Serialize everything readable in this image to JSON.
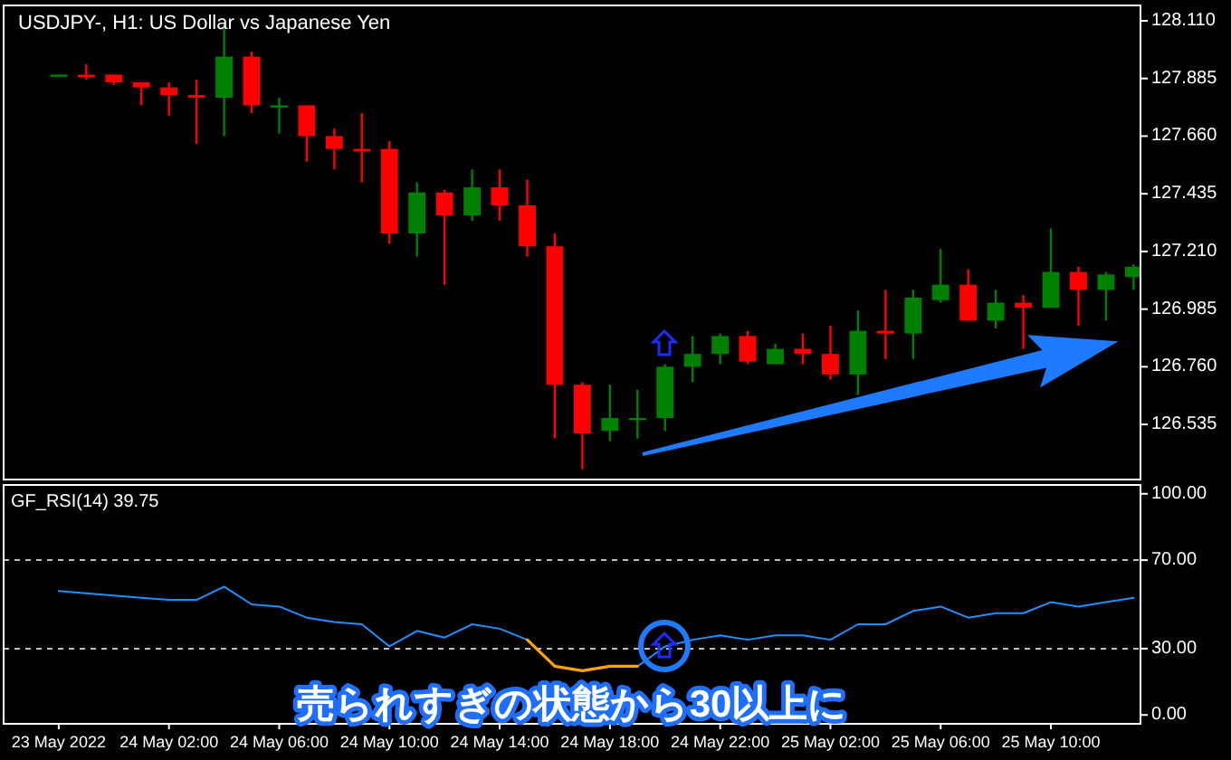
{
  "chart_data": [
    {
      "type": "candlestick",
      "title": "USDJPY-, H1:  US Dollar vs Japanese Yen",
      "x": [
        "2022-05-23T22:00",
        "2022-05-23T23:00",
        "2022-05-24T00:00",
        "2022-05-24T01:00",
        "2022-05-24T02:00",
        "2022-05-24T03:00",
        "2022-05-24T04:00",
        "2022-05-24T05:00",
        "2022-05-24T06:00",
        "2022-05-24T07:00",
        "2022-05-24T08:00",
        "2022-05-24T09:00",
        "2022-05-24T10:00",
        "2022-05-24T11:00",
        "2022-05-24T12:00",
        "2022-05-24T13:00",
        "2022-05-24T14:00",
        "2022-05-24T15:00",
        "2022-05-24T16:00",
        "2022-05-24T17:00",
        "2022-05-24T18:00",
        "2022-05-24T19:00",
        "2022-05-24T20:00",
        "2022-05-24T21:00",
        "2022-05-24T22:00",
        "2022-05-24T23:00",
        "2022-05-25T00:00",
        "2022-05-25T01:00",
        "2022-05-25T02:00",
        "2022-05-25T03:00",
        "2022-05-25T04:00",
        "2022-05-25T05:00",
        "2022-05-25T06:00",
        "2022-05-25T07:00",
        "2022-05-25T08:00",
        "2022-05-25T09:00",
        "2022-05-25T10:00",
        "2022-05-25T11:00",
        "2022-05-25T12:00",
        "2022-05-25T13:00"
      ],
      "ohlc": [
        [
          127.9,
          127.9,
          127.9,
          127.9
        ],
        [
          127.9,
          127.94,
          127.88,
          127.89
        ],
        [
          127.9,
          127.9,
          127.86,
          127.87
        ],
        [
          127.87,
          127.87,
          127.78,
          127.85
        ],
        [
          127.85,
          127.87,
          127.74,
          127.82
        ],
        [
          127.82,
          127.88,
          127.63,
          127.81
        ],
        [
          127.81,
          128.1,
          127.66,
          127.97
        ],
        [
          127.97,
          127.99,
          127.75,
          127.78
        ],
        [
          127.78,
          127.81,
          127.67,
          127.78
        ],
        [
          127.78,
          127.78,
          127.56,
          127.66
        ],
        [
          127.66,
          127.69,
          127.53,
          127.61
        ],
        [
          127.61,
          127.75,
          127.48,
          127.6
        ],
        [
          127.61,
          127.64,
          127.24,
          127.28
        ],
        [
          127.28,
          127.48,
          127.19,
          127.44
        ],
        [
          127.44,
          127.45,
          127.08,
          127.35
        ],
        [
          127.35,
          127.53,
          127.33,
          127.46
        ],
        [
          127.46,
          127.53,
          127.33,
          127.39
        ],
        [
          127.39,
          127.49,
          127.19,
          127.23
        ],
        [
          127.23,
          127.28,
          126.48,
          126.69
        ],
        [
          126.69,
          126.7,
          126.36,
          126.5
        ],
        [
          126.51,
          126.69,
          126.47,
          126.56
        ],
        [
          126.56,
          126.67,
          126.48,
          126.56
        ],
        [
          126.56,
          126.77,
          126.51,
          126.76
        ],
        [
          126.76,
          126.88,
          126.7,
          126.81
        ],
        [
          126.81,
          126.89,
          126.77,
          126.88
        ],
        [
          126.88,
          126.9,
          126.77,
          126.78
        ],
        [
          126.77,
          126.85,
          126.77,
          126.83
        ],
        [
          126.83,
          126.89,
          126.77,
          126.81
        ],
        [
          126.81,
          126.92,
          126.71,
          126.73
        ],
        [
          126.73,
          126.98,
          126.65,
          126.9
        ],
        [
          126.9,
          127.06,
          126.79,
          126.89
        ],
        [
          126.89,
          127.06,
          126.79,
          127.03
        ],
        [
          127.02,
          127.22,
          127.01,
          127.08
        ],
        [
          127.08,
          127.14,
          126.94,
          126.94
        ],
        [
          126.94,
          127.06,
          126.91,
          127.01
        ],
        [
          127.01,
          127.04,
          126.83,
          126.99
        ],
        [
          126.99,
          127.3,
          126.99,
          127.13
        ],
        [
          127.13,
          127.15,
          126.92,
          127.06
        ],
        [
          127.06,
          127.13,
          126.94,
          127.12
        ],
        [
          127.11,
          127.16,
          127.06,
          127.15
        ]
      ],
      "colors": [
        "#008000",
        "#ff0000",
        "#ff0000",
        "#ff0000",
        "#ff0000",
        "#ff0000",
        "#008000",
        "#ff0000",
        "#008000",
        "#ff0000",
        "#ff0000",
        "#ff0000",
        "#ff0000",
        "#008000",
        "#ff0000",
        "#008000",
        "#ff0000",
        "#ff0000",
        "#ff0000",
        "#ff0000",
        "#008000",
        "#008000",
        "#008000",
        "#008000",
        "#008000",
        "#ff0000",
        "#008000",
        "#ff0000",
        "#ff0000",
        "#008000",
        "#ff0000",
        "#008000",
        "#008000",
        "#ff0000",
        "#008000",
        "#ff0000",
        "#008000",
        "#ff0000",
        "#008000",
        "#008000"
      ],
      "xlim": [
        "2022-05-23T20:00",
        "2022-05-25T13:15"
      ],
      "ylim": [
        126.32,
        128.17
      ],
      "yticks": [
        {
          "value": 128.11,
          "label": "128.110"
        },
        127.885,
        {
          "value": 127.66,
          "label": "127.660"
        },
        127.435,
        {
          "value": 127.21,
          "label": "127.210"
        },
        126.985,
        {
          "value": 126.76,
          "label": "126.760"
        },
        126.535
      ],
      "tick_labels": "y"
    },
    {
      "type": "line",
      "title": "GF_RSI(14) 39.75",
      "x": [
        "2022-05-23T22:00",
        "2022-05-23T23:00",
        "2022-05-24T00:00",
        "2022-05-24T01:00",
        "2022-05-24T02:00",
        "2022-05-24T03:00",
        "2022-05-24T04:00",
        "2022-05-24T05:00",
        "2022-05-24T06:00",
        "2022-05-24T07:00",
        "2022-05-24T08:00",
        "2022-05-24T09:00",
        "2022-05-24T10:00",
        "2022-05-24T11:00",
        "2022-05-24T12:00",
        "2022-05-24T13:00",
        "2022-05-24T14:00",
        "2022-05-24T15:00",
        "2022-05-24T16:00",
        "2022-05-24T17:00",
        "2022-05-24T18:00",
        "2022-05-24T19:00",
        "2022-05-24T20:00",
        "2022-05-24T21:00",
        "2022-05-24T22:00",
        "2022-05-24T23:00",
        "2022-05-25T00:00",
        "2022-05-25T01:00",
        "2022-05-25T02:00",
        "2022-05-25T03:00",
        "2022-05-25T04:00",
        "2022-05-25T05:00",
        "2022-05-25T06:00",
        "2022-05-25T07:00",
        "2022-05-25T08:00",
        "2022-05-25T09:00",
        "2022-05-25T10:00",
        "2022-05-25T11:00",
        "2022-05-25T12:00",
        "2022-05-25T13:00"
      ],
      "series": [
        {
          "color": "#1e90ff",
          "values": [
            56,
            55,
            54,
            53,
            52,
            52,
            58,
            50,
            49,
            44,
            42,
            41,
            31,
            38,
            35,
            41,
            39,
            34,
            null,
            null,
            null,
            22,
            31,
            34,
            36,
            34,
            36,
            36,
            34,
            41,
            41,
            47,
            49,
            44,
            46,
            46,
            51,
            49,
            51,
            53
          ]
        },
        {
          "color": "#ffa500",
          "values": [
            null,
            null,
            null,
            null,
            null,
            null,
            null,
            null,
            null,
            null,
            null,
            null,
            null,
            null,
            null,
            null,
            null,
            34,
            22,
            20,
            22,
            22,
            null,
            null,
            null,
            null,
            null,
            null,
            null,
            null,
            null,
            null,
            null,
            null,
            null,
            null,
            null,
            null,
            null,
            null
          ]
        }
      ],
      "xlim": [
        "2022-05-23T20:00",
        "2022-05-25T13:15"
      ],
      "ylim": [
        -4,
        104
      ],
      "yticks": [
        {
          "value": 100,
          "label": "100.00"
        },
        {
          "value": 70,
          "label": "70.00"
        },
        {
          "value": 30,
          "label": "30.00"
        },
        {
          "value": 0,
          "label": "0.00"
        }
      ],
      "xticks": [
        {
          "value": "2022-05-23T22:00",
          "label": "23 May 2022"
        },
        {
          "value": "2022-05-24T02:00",
          "label": "24 May 02:00"
        },
        {
          "value": "2022-05-24T06:00",
          "label": "24 May 06:00"
        },
        {
          "value": "2022-05-24T10:00",
          "label": "24 May 10:00"
        },
        {
          "value": "2022-05-24T14:00",
          "label": "24 May 14:00"
        },
        {
          "value": "2022-05-24T18:00",
          "label": "24 May 18:00"
        },
        {
          "value": "2022-05-24T22:00",
          "label": "24 May 22:00"
        },
        {
          "value": "2022-05-25T02:00",
          "label": "25 May 02:00"
        },
        {
          "value": "2022-05-25T06:00",
          "label": "25 May 06:00"
        },
        {
          "value": "2022-05-25T10:00",
          "label": "25 May 10:00"
        }
      ],
      "ref_lines": [
        {
          "axis": "y",
          "value": 70,
          "label": null,
          "color": "#c0c0c0",
          "line_style": "dashed"
        },
        {
          "axis": "y",
          "value": 30,
          "label": null,
          "color": "#c0c0c0",
          "line_style": "dashed"
        }
      ],
      "annotations": [
        "売られすぎの状態から30以上に"
      ]
    }
  ]
}
